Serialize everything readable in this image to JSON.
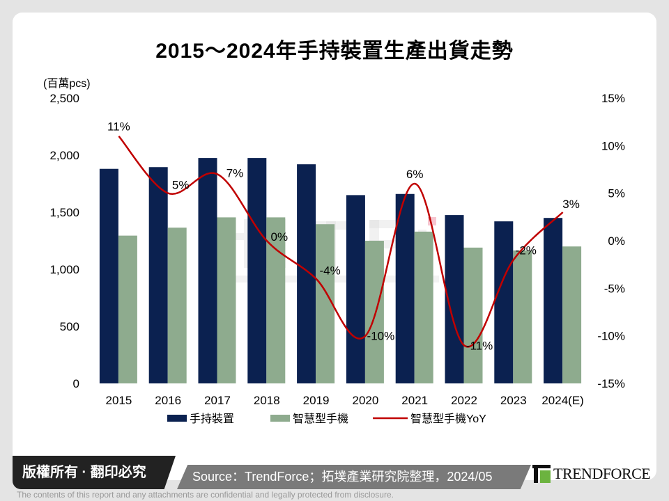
{
  "title": "2015～2024年手持裝置生產出貨走勢",
  "chart_data": {
    "type": "bar+line",
    "title": "2015～2024年手持裝置生產出貨走勢",
    "ylabel": "(百萬pcs)",
    "categories": [
      "2015",
      "2016",
      "2017",
      "2018",
      "2019",
      "2020",
      "2021",
      "2022",
      "2023",
      "2024(E)"
    ],
    "ylim": [
      0,
      2500
    ],
    "yticks": [
      "0",
      "500",
      "1,000",
      "1,500",
      "2,000",
      "2,500"
    ],
    "y2lim": [
      -15,
      15
    ],
    "y2ticks": [
      "-15%",
      "-10%",
      "-5%",
      "0%",
      "5%",
      "10%",
      "15%"
    ],
    "series": [
      {
        "name": "手持裝置",
        "type": "bar",
        "color": "#0b2150",
        "values": [
          1880,
          1895,
          1975,
          1975,
          1920,
          1650,
          1660,
          1475,
          1420,
          1450
        ]
      },
      {
        "name": "智慧型手機",
        "type": "bar",
        "color": "#8eab8e",
        "values": [
          1295,
          1365,
          1455,
          1455,
          1395,
          1250,
          1330,
          1190,
          1165,
          1200
        ]
      },
      {
        "name": "智慧型手機YoY",
        "type": "line",
        "axis": "right",
        "color": "#c00000",
        "values": [
          11,
          5,
          7,
          0,
          -4,
          -10,
          6,
          -11,
          -2,
          3
        ],
        "labels": [
          "11%",
          "5%",
          "7%",
          "0%",
          "-4%",
          "-10%",
          "6%",
          "-11%",
          "-2%",
          "3%"
        ]
      }
    ],
    "legend": "bottom",
    "grid": false
  },
  "watermark": "拓墣 TRi TOPOLOGY RESEARCH INSTITUTE",
  "footer": {
    "copyright": "版權所有 · 翻印必究",
    "source": "Source：TrendForce；拓墣產業研究院整理，2024/05",
    "logo": "TRENDFORCE",
    "disclaimer": "The contents of this report and any attachments are confidential and legally protected from disclosure."
  }
}
